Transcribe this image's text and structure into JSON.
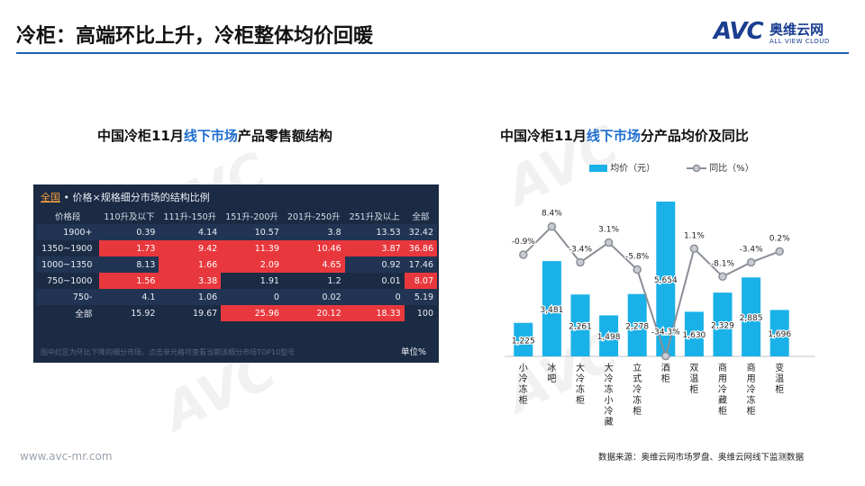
{
  "header": {
    "title": "冷柜：高端环比上升，冷柜整体均价回暖",
    "logo_mark": "AVC",
    "logo_cn": "奥维云网",
    "logo_en": "ALL VIEW CLOUD"
  },
  "left": {
    "title_pre": "中国冷柜11月",
    "title_hl": "线下市场",
    "title_post": "产品零售额结构",
    "panel": {
      "scope": "全国",
      "heading": " • 价格×规格细分市场的结构比例",
      "columns": [
        "价格段",
        "110升及以下",
        "111升-150升",
        "151升-200升",
        "201升-250升",
        "251升及以上",
        "全部"
      ],
      "rows": [
        {
          "label": "1900+",
          "cells": [
            "0.39",
            "4.14",
            "10.57",
            "3.8",
            "13.53",
            "32.42"
          ],
          "hot": [
            false,
            false,
            false,
            false,
            false,
            false
          ]
        },
        {
          "label": "1350~1900",
          "cells": [
            "1.73",
            "9.42",
            "11.39",
            "10.46",
            "3.87",
            "36.86"
          ],
          "hot": [
            true,
            true,
            true,
            true,
            true,
            true
          ]
        },
        {
          "label": "1000~1350",
          "cells": [
            "8.13",
            "1.66",
            "2.09",
            "4.65",
            "0.92",
            "17.46"
          ],
          "hot": [
            false,
            true,
            true,
            true,
            false,
            false
          ]
        },
        {
          "label": "750~1000",
          "cells": [
            "1.56",
            "3.38",
            "1.91",
            "1.2",
            "0.01",
            "8.07"
          ],
          "hot": [
            true,
            true,
            false,
            false,
            false,
            true
          ]
        },
        {
          "label": "750-",
          "cells": [
            "4.1",
            "1.06",
            "0",
            "0.02",
            "0",
            "5.19"
          ],
          "hot": [
            false,
            false,
            false,
            false,
            false,
            false
          ]
        },
        {
          "label": "全部",
          "cells": [
            "15.92",
            "19.67",
            "25.96",
            "20.12",
            "18.33",
            "100"
          ],
          "hot": [
            false,
            false,
            true,
            true,
            true,
            false
          ]
        }
      ],
      "note": "图中红区为环比下降的细分市场，点击单元格可查看当期该细分市场TOP10型号",
      "unit": "单位%"
    }
  },
  "right": {
    "title_pre": "中国冷柜11月",
    "title_hl": "线下市场",
    "title_post": "分产品均价及同比"
  },
  "colors": {
    "bar": "#1ab1e8",
    "line": "#8a8f96",
    "marker_fill": "#c8ccd2",
    "highlight": "#e8383d",
    "panel_bg": "#1c2b44",
    "title_rule": "#1f5fae"
  },
  "chart_data": {
    "type": "bar",
    "categories": [
      "小冷冻柜",
      "冰吧",
      "大冷冻柜",
      "大冷冻小冷藏",
      "立式冷冻柜",
      "酒柜",
      "双温柜",
      "商用冷藏柜",
      "商用冷冻柜",
      "变温柜"
    ],
    "series": [
      {
        "name": "均价（元）",
        "type": "bar",
        "values": [
          1225,
          3481,
          2261,
          1498,
          2278,
          5654,
          1630,
          2329,
          2885,
          1696
        ],
        "labels": [
          "1,225",
          "3,481",
          "2,261",
          "1,498",
          "2,278",
          "5,654",
          "1,630",
          "2,329",
          "2,885",
          "1,696"
        ]
      },
      {
        "name": "同比（%）",
        "type": "line",
        "values": [
          -0.9,
          8.4,
          -3.4,
          3.1,
          -5.8,
          -34.3,
          1.1,
          -8.1,
          -3.4,
          0.2
        ],
        "labels": [
          "-0.9%",
          "8.4%",
          "-3.4%",
          "3.1%",
          "-5.8%",
          "-34.3%",
          "1.1%",
          "-8.1%",
          "-3.4%",
          "0.2%"
        ]
      }
    ],
    "legend_position": "top",
    "grid": false
  },
  "footer": {
    "url": "www.avc-mr.com",
    "source": "数据来源：奥维云网市场罗盘、奥维云网线下监测数据"
  }
}
